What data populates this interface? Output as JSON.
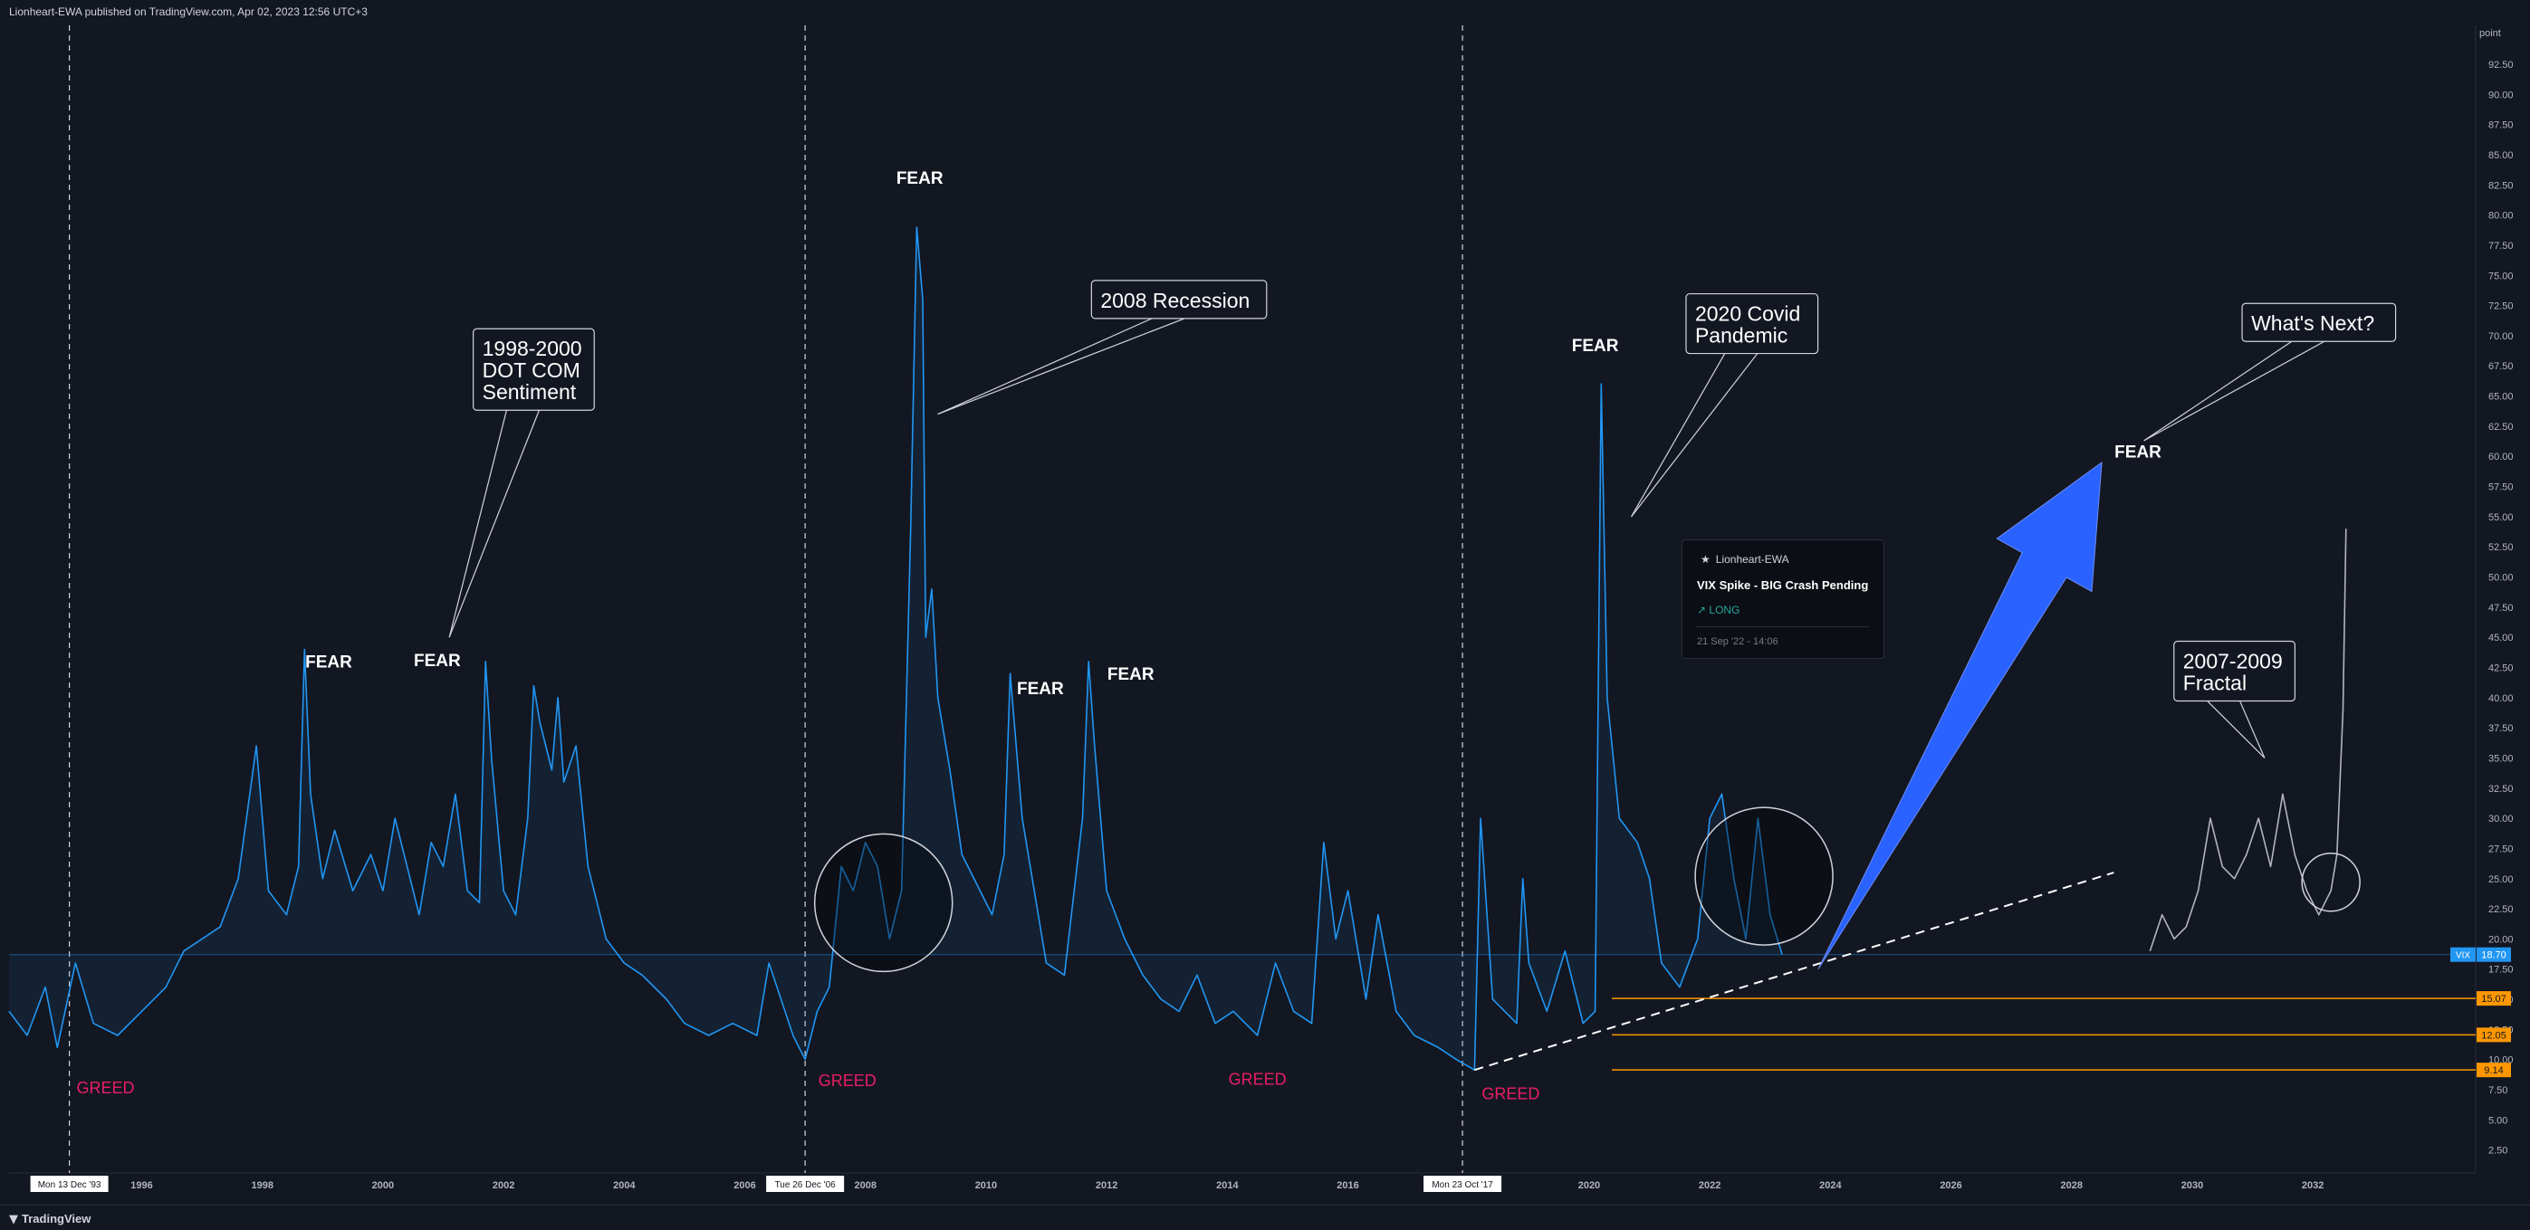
{
  "header": {
    "published": "Lionheart-EWA published on TradingView.com, Apr 02, 2023 12:56 UTC+3"
  },
  "footer": {
    "logo": "TradingView"
  },
  "colors": {
    "background": "#131722",
    "series": "#2196f3",
    "projection": "#b2b5be",
    "fear": "#ffffff",
    "greed": "#e91e63",
    "level": "#ff9800",
    "arrow": "#2962ff",
    "price": "#2196f3"
  },
  "idea_card": {
    "author": "Lionheart-EWA",
    "title": "VIX Spike - BIG Crash Pending",
    "direction": "LONG",
    "date": "21 Sep '22 - 14:06"
  },
  "chart_data": {
    "type": "line",
    "symbol": "VIX",
    "y_axis": {
      "unit": "point",
      "min": 0,
      "max": 95,
      "ticks": [
        2.5,
        5,
        7.5,
        10,
        12.5,
        15,
        17.5,
        20,
        22.5,
        25,
        27.5,
        30,
        32.5,
        35,
        37.5,
        40,
        42.5,
        45,
        47.5,
        50,
        52.5,
        55,
        57.5,
        60,
        62.5,
        65,
        67.5,
        70,
        72.5,
        75,
        77.5,
        80,
        82.5,
        85,
        87.5,
        90,
        92.5
      ]
    },
    "x_axis": {
      "min": 1993.8,
      "max": 2034.7,
      "ticks": [
        "1996",
        "1998",
        "2000",
        "2002",
        "2004",
        "2006",
        "2008",
        "2010",
        "2012",
        "2014",
        "2016",
        "2018",
        "2020",
        "2022",
        "2024",
        "2026",
        "2028",
        "2030",
        "2032"
      ],
      "tick_years": [
        1996,
        1998,
        2000,
        2002,
        2004,
        2006,
        2008,
        2010,
        2012,
        2014,
        2016,
        2018,
        2020,
        2022,
        2024,
        2026,
        2028,
        2030,
        2032
      ]
    },
    "series": [
      {
        "points": [
          [
            1993.8,
            14
          ],
          [
            1994.1,
            12
          ],
          [
            1994.4,
            16
          ],
          [
            1994.6,
            11
          ],
          [
            1994.9,
            18
          ],
          [
            1995.2,
            13
          ],
          [
            1995.6,
            12
          ],
          [
            1996.0,
            14
          ],
          [
            1996.4,
            16
          ],
          [
            1996.7,
            19
          ],
          [
            1997.0,
            20
          ],
          [
            1997.3,
            21
          ],
          [
            1997.6,
            25
          ],
          [
            1997.9,
            36
          ],
          [
            1998.1,
            24
          ],
          [
            1998.4,
            22
          ],
          [
            1998.6,
            26
          ],
          [
            1998.7,
            44
          ],
          [
            1998.8,
            32
          ],
          [
            1999.0,
            25
          ],
          [
            1999.2,
            29
          ],
          [
            1999.5,
            24
          ],
          [
            1999.8,
            27
          ],
          [
            2000.0,
            24
          ],
          [
            2000.2,
            30
          ],
          [
            2000.4,
            26
          ],
          [
            2000.6,
            22
          ],
          [
            2000.8,
            28
          ],
          [
            2001.0,
            26
          ],
          [
            2001.2,
            32
          ],
          [
            2001.4,
            24
          ],
          [
            2001.6,
            23
          ],
          [
            2001.7,
            43
          ],
          [
            2001.8,
            35
          ],
          [
            2002.0,
            24
          ],
          [
            2002.2,
            22
          ],
          [
            2002.4,
            30
          ],
          [
            2002.5,
            41
          ],
          [
            2002.6,
            38
          ],
          [
            2002.8,
            34
          ],
          [
            2002.9,
            40
          ],
          [
            2003.0,
            33
          ],
          [
            2003.2,
            36
          ],
          [
            2003.4,
            26
          ],
          [
            2003.7,
            20
          ],
          [
            2004.0,
            18
          ],
          [
            2004.3,
            17
          ],
          [
            2004.7,
            15
          ],
          [
            2005.0,
            13
          ],
          [
            2005.4,
            12
          ],
          [
            2005.8,
            13
          ],
          [
            2006.2,
            12
          ],
          [
            2006.4,
            18
          ],
          [
            2006.8,
            12
          ],
          [
            2007.0,
            10
          ],
          [
            2007.2,
            14
          ],
          [
            2007.4,
            16
          ],
          [
            2007.6,
            26
          ],
          [
            2007.8,
            24
          ],
          [
            2008.0,
            28
          ],
          [
            2008.2,
            26
          ],
          [
            2008.4,
            20
          ],
          [
            2008.6,
            24
          ],
          [
            2008.75,
            54
          ],
          [
            2008.85,
            79
          ],
          [
            2008.95,
            73
          ],
          [
            2009.0,
            45
          ],
          [
            2009.1,
            49
          ],
          [
            2009.2,
            40
          ],
          [
            2009.4,
            34
          ],
          [
            2009.6,
            27
          ],
          [
            2009.9,
            24
          ],
          [
            2010.1,
            22
          ],
          [
            2010.3,
            27
          ],
          [
            2010.4,
            42
          ],
          [
            2010.6,
            30
          ],
          [
            2010.8,
            24
          ],
          [
            2011.0,
            18
          ],
          [
            2011.3,
            17
          ],
          [
            2011.6,
            30
          ],
          [
            2011.7,
            43
          ],
          [
            2011.8,
            36
          ],
          [
            2012.0,
            24
          ],
          [
            2012.3,
            20
          ],
          [
            2012.6,
            17
          ],
          [
            2012.9,
            15
          ],
          [
            2013.2,
            14
          ],
          [
            2013.5,
            17
          ],
          [
            2013.8,
            13
          ],
          [
            2014.1,
            14
          ],
          [
            2014.5,
            12
          ],
          [
            2014.8,
            18
          ],
          [
            2015.1,
            14
          ],
          [
            2015.4,
            13
          ],
          [
            2015.6,
            28
          ],
          [
            2015.8,
            20
          ],
          [
            2016.0,
            24
          ],
          [
            2016.3,
            15
          ],
          [
            2016.5,
            22
          ],
          [
            2016.8,
            14
          ],
          [
            2017.1,
            12
          ],
          [
            2017.5,
            11
          ],
          [
            2017.8,
            10
          ],
          [
            2018.1,
            9.14
          ],
          [
            2018.2,
            30
          ],
          [
            2018.4,
            15
          ],
          [
            2018.8,
            13
          ],
          [
            2018.9,
            25
          ],
          [
            2019.0,
            18
          ],
          [
            2019.3,
            14
          ],
          [
            2019.6,
            19
          ],
          [
            2019.9,
            13
          ],
          [
            2020.1,
            14
          ],
          [
            2020.2,
            66
          ],
          [
            2020.3,
            40
          ],
          [
            2020.5,
            30
          ],
          [
            2020.8,
            28
          ],
          [
            2021.0,
            25
          ],
          [
            2021.2,
            18
          ],
          [
            2021.5,
            16
          ],
          [
            2021.8,
            20
          ],
          [
            2022.0,
            30
          ],
          [
            2022.2,
            32
          ],
          [
            2022.4,
            25
          ],
          [
            2022.6,
            20
          ],
          [
            2022.8,
            30
          ],
          [
            2023.0,
            22
          ],
          [
            2023.2,
            18.7
          ]
        ]
      },
      {
        "points": [
          [
            2029.3,
            19
          ],
          [
            2029.5,
            22
          ],
          [
            2029.7,
            20
          ],
          [
            2029.9,
            21
          ],
          [
            2030.1,
            24
          ],
          [
            2030.3,
            30
          ],
          [
            2030.5,
            26
          ],
          [
            2030.7,
            25
          ],
          [
            2030.9,
            27
          ],
          [
            2031.1,
            30
          ],
          [
            2031.3,
            26
          ],
          [
            2031.5,
            32
          ],
          [
            2031.7,
            27
          ],
          [
            2031.9,
            24
          ],
          [
            2032.1,
            22
          ],
          [
            2032.3,
            24
          ],
          [
            2032.4,
            27
          ],
          [
            2032.5,
            39
          ],
          [
            2032.55,
            54
          ]
        ]
      }
    ],
    "price_line": 18.7,
    "price_tag": {
      "label": "VIX",
      "value": "18.70"
    },
    "levels": [
      15.07,
      12.05,
      9.14
    ],
    "level_labels": [
      "15.07",
      "12.05",
      "9.14"
    ],
    "vlines": [
      1994.8,
      2007.0,
      2017.9
    ],
    "date_tags": [
      "Mon 13 Dec '93",
      "Tue 26 Dec '06",
      "Mon 23 Oct '17"
    ],
    "trendline": {
      "from": [
        2018.1,
        9.14
      ],
      "to": [
        2028.7,
        25.5
      ]
    },
    "arrow": {
      "from": [
        2023.8,
        17.5
      ],
      "to": [
        2028.5,
        59.5
      ]
    },
    "circles": [
      {
        "x": 2008.3,
        "y": 23
      },
      {
        "x": 2022.9,
        "y": 25.2
      },
      {
        "x": 2032.3,
        "y": 24.7
      }
    ],
    "fear_labels": [
      {
        "text": "FEAR",
        "x": 1999.1,
        "y": 42.5
      },
      {
        "text": "FEAR",
        "x": 2000.9,
        "y": 42.6
      },
      {
        "text": "FEAR",
        "x": 2008.9,
        "y": 82.6
      },
      {
        "text": "FEAR",
        "x": 2010.9,
        "y": 40.3
      },
      {
        "text": "FEAR",
        "x": 2012.4,
        "y": 41.5
      },
      {
        "text": "FEAR",
        "x": 2020.1,
        "y": 68.7
      },
      {
        "text": "FEAR",
        "x": 2029.1,
        "y": 59.9
      }
    ],
    "greed_labels": [
      {
        "text": "GREED",
        "x": 1995.4,
        "y": 7.2
      },
      {
        "text": "GREED",
        "x": 2007.7,
        "y": 7.8
      },
      {
        "text": "GREED",
        "x": 2014.5,
        "y": 7.9
      },
      {
        "text": "GREED",
        "x": 2018.7,
        "y": 6.7
      }
    ],
    "callouts": [
      {
        "lines": [
          "1998-2000",
          "DOT COM",
          "Sentiment"
        ],
        "x": 2002.5,
        "y": 67.2,
        "tx": 2001.1,
        "ty": 45
      },
      {
        "lines": [
          "2008 Recession"
        ],
        "x": 2013.2,
        "y": 73.0,
        "tx": 2009.2,
        "ty": 63.5
      },
      {
        "lines": [
          "2020 Covid",
          "Pandemic"
        ],
        "x": 2022.7,
        "y": 71.0,
        "tx": 2020.7,
        "ty": 55
      },
      {
        "lines": [
          "What's Next?"
        ],
        "x": 2032.1,
        "y": 71.1,
        "tx": 2029.2,
        "ty": 61.3
      },
      {
        "lines": [
          "2007-2009",
          "Fractal"
        ],
        "x": 2030.7,
        "y": 42.2,
        "tx": 2031.2,
        "ty": 35
      }
    ]
  }
}
